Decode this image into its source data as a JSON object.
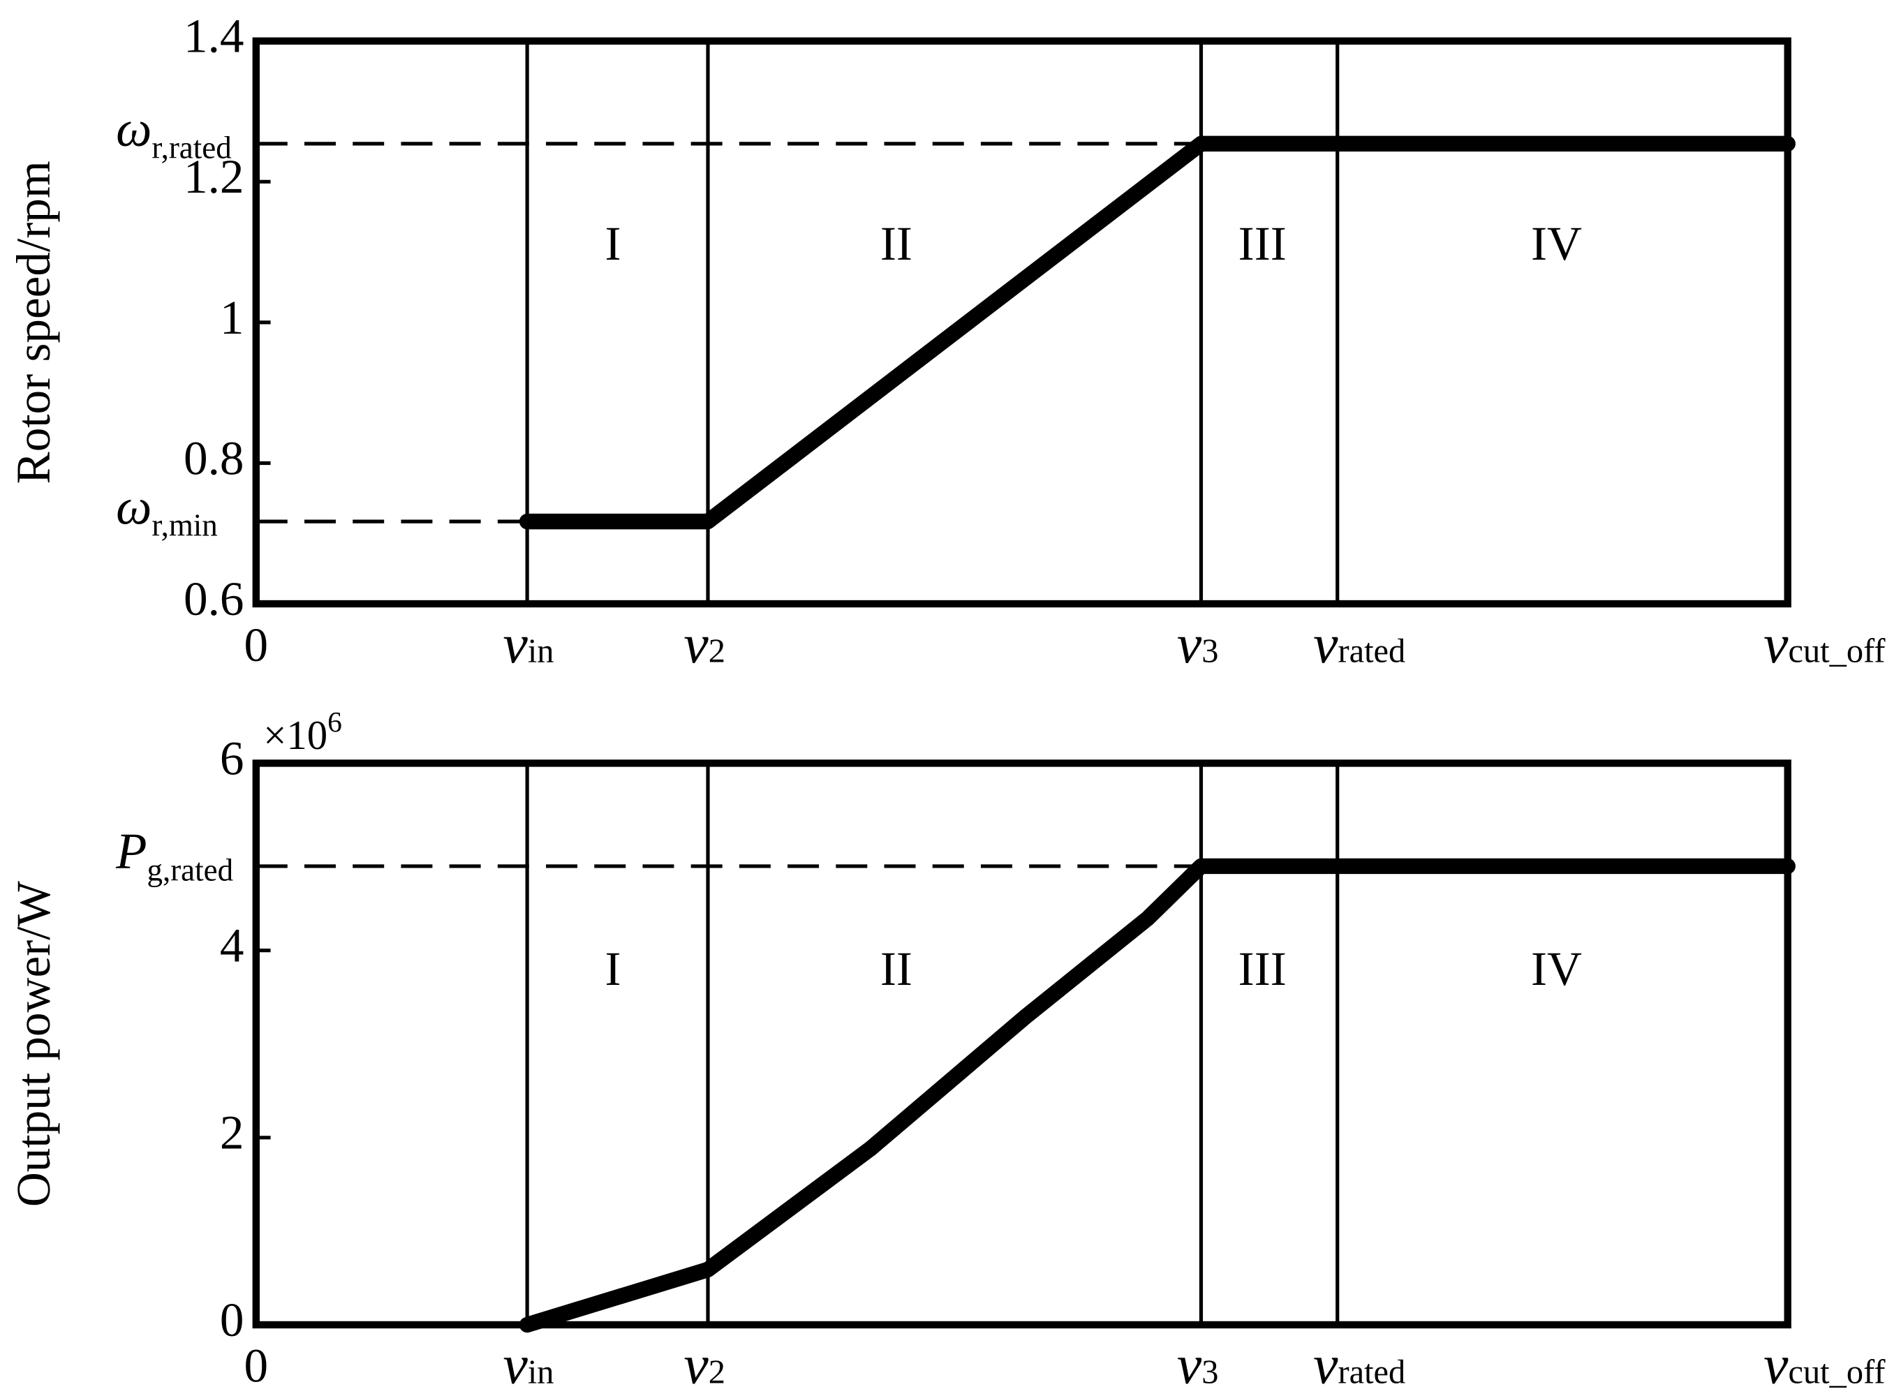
{
  "chart_data": [
    {
      "type": "line",
      "y_label": "Rotor speed/rpm",
      "xlim": [
        0,
        1
      ],
      "xticks": [
        {
          "value": 0,
          "label": "0"
        },
        {
          "value": 0.177,
          "label": "v",
          "subscript": "in"
        },
        {
          "value": 0.295,
          "label": "v",
          "subscript": "2"
        },
        {
          "value": 0.617,
          "label": "v",
          "subscript": "3"
        },
        {
          "value": 0.706,
          "label": "v",
          "subscript": "rated"
        },
        {
          "value": 1,
          "label": "v",
          "subscript": "cut_off"
        }
      ],
      "ylim": [
        0.6,
        1.4
      ],
      "yticks": [
        0.6,
        0.8,
        1,
        1.2,
        1.4
      ],
      "series": [
        {
          "color": "#000000",
          "x": [
            0.177,
            0.295,
            0.617,
            1
          ],
          "values": [
            0.717,
            0.717,
            1.254,
            1.254
          ]
        }
      ],
      "reference_levels": [
        {
          "symbol": "ω",
          "subscript": "r,rated",
          "value": 1.254
        },
        {
          "symbol": "ω",
          "subscript": "r,min",
          "value": 0.717
        }
      ],
      "region_labels": [
        {
          "text": "I",
          "x": 0.233,
          "y": 1.105
        },
        {
          "text": "II",
          "x": 0.418,
          "y": 1.105
        },
        {
          "text": "III",
          "x": 0.657,
          "y": 1.105
        },
        {
          "text": "IV",
          "x": 0.849,
          "y": 1.105
        }
      ]
    },
    {
      "type": "line",
      "y_label": "Output power/W",
      "axis_multiplier": {
        "base": "×10",
        "exponent": "6"
      },
      "xlim": [
        0,
        1
      ],
      "xticks": [
        {
          "value": 0,
          "label": "0"
        },
        {
          "value": 0.177,
          "label": "v",
          "subscript": "in"
        },
        {
          "value": 0.295,
          "label": "v",
          "subscript": "2"
        },
        {
          "value": 0.617,
          "label": "v",
          "subscript": "3"
        },
        {
          "value": 0.706,
          "label": "v",
          "subscript": "rated"
        },
        {
          "value": 1,
          "label": "v",
          "subscript": "cut_off"
        }
      ],
      "ylim": [
        0,
        6
      ],
      "yticks": [
        0,
        2,
        4,
        6
      ],
      "series": [
        {
          "color": "#000000",
          "x": [
            0.177,
            0.295,
            0.401,
            0.503,
            0.582,
            0.617,
            0.706,
            1
          ],
          "values": [
            0,
            0.59,
            1.88,
            3.3,
            4.34,
            4.9,
            4.9,
            4.9
          ]
        }
      ],
      "reference_levels": [
        {
          "symbol": "P",
          "subscript": "g,rated",
          "value": 4.9
        }
      ],
      "region_labels": [
        {
          "text": "I",
          "x": 0.233,
          "y": 3.75
        },
        {
          "text": "II",
          "x": 0.418,
          "y": 3.75
        },
        {
          "text": "III",
          "x": 0.657,
          "y": 3.75
        },
        {
          "text": "IV",
          "x": 0.849,
          "y": 3.75
        }
      ]
    }
  ]
}
